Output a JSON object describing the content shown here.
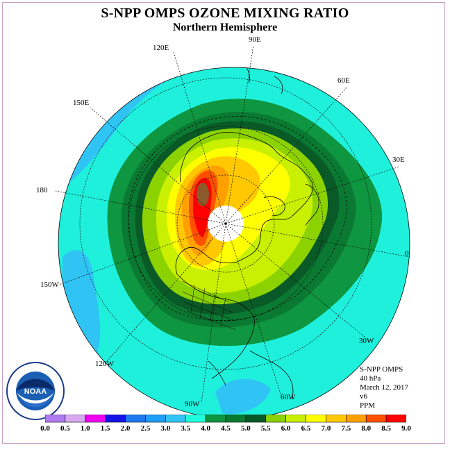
{
  "title": "S-NPP OMPS OZONE MIXING RATIO",
  "subtitle": "Northern Hemisphere",
  "longitude_labels": [
    "90E",
    "60E",
    "30E",
    "0",
    "30W",
    "60W",
    "90W",
    "120W",
    "150W",
    "180",
    "150E",
    "120E"
  ],
  "info": {
    "instrument": "S-NPP OMPS",
    "level": "40 hPa",
    "date": "March 12, 2017",
    "version": "v6",
    "units": "PPM"
  },
  "logo_text": "NOAA",
  "colorbar": {
    "ticks": [
      "0.0",
      "0.5",
      "1.0",
      "1.5",
      "2.0",
      "2.5",
      "3.0",
      "3.5",
      "4.0",
      "4.5",
      "5.0",
      "5.5",
      "6.0",
      "6.5",
      "7.0",
      "7.5",
      "8.0",
      "8.5",
      "9.0"
    ],
    "colors": [
      "#b07cf0",
      "#d8a8f0",
      "#f000f0",
      "#1414e6",
      "#1e78f0",
      "#1e9ef5",
      "#30c4f5",
      "#20ffdc",
      "#0e9640",
      "#0a7a32",
      "#0a5a28",
      "#8cd200",
      "#c8f000",
      "#ffff00",
      "#ffc800",
      "#ffa000",
      "#ff5000",
      "#ff0000",
      "#8b5a2b"
    ]
  },
  "map": {
    "projection": "north polar stereographic",
    "background_color": "#1ef0dc",
    "polar_gap_color": "#ffffff"
  }
}
